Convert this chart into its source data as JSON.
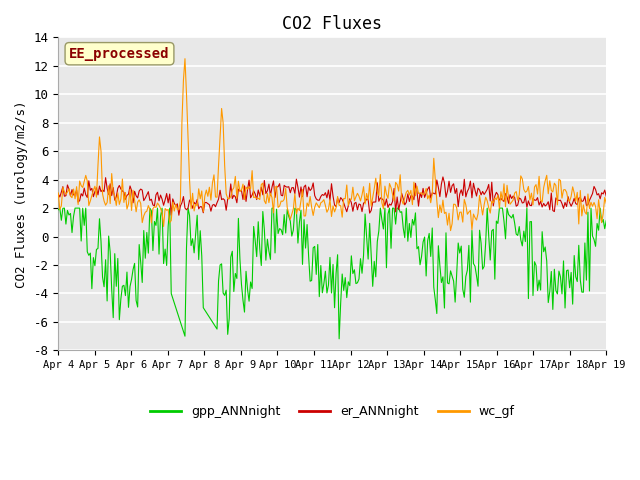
{
  "title": "CO2 Fluxes",
  "ylabel": "CO2 Fluxes (urology/m2/s)",
  "ylim": [
    -8,
    14
  ],
  "yticks": [
    -8,
    -6,
    -4,
    -2,
    0,
    2,
    4,
    6,
    8,
    10,
    12,
    14
  ],
  "colors": {
    "gpp": "#00cc00",
    "er": "#cc0000",
    "wc": "#ff9900"
  },
  "legend_labels": [
    "gpp_ANNnight",
    "er_ANNnight",
    "wc_gf"
  ],
  "watermark": "EE_processed",
  "watermark_color": "#8b0000",
  "watermark_bg": "#ffffcc",
  "n_points": 360,
  "date_start": "Apr 4",
  "date_end": "Apr 19",
  "x_tick_labels": [
    "Apr 4",
    "Apr 5",
    "Apr 6",
    "Apr 7",
    "Apr 8",
    "Apr 9",
    "Apr 10",
    "Apr 11",
    "Apr 12",
    "Apr 13",
    "Apr 14",
    "Apr 15",
    "Apr 16",
    "Apr 17",
    "Apr 18",
    "Apr 19"
  ],
  "background_color": "#e8e8e8",
  "grid_color": "#ffffff",
  "linewidth": 0.8,
  "title_fontsize": 12
}
